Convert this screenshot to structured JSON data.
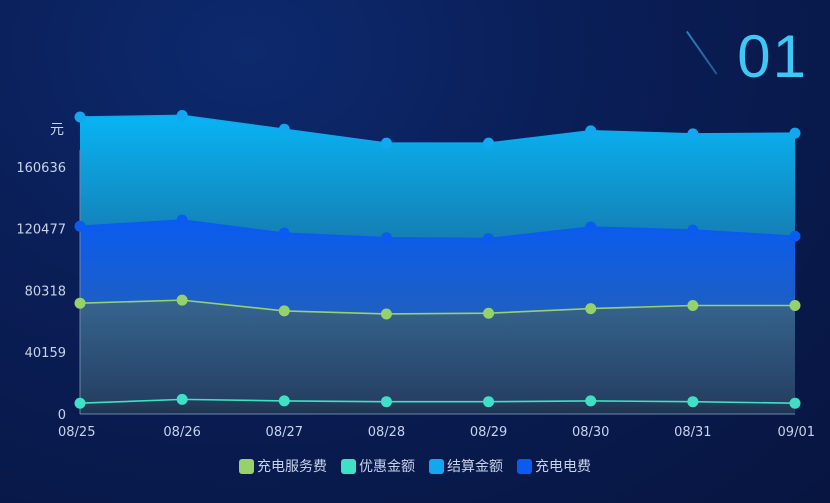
{
  "badge_number": "01",
  "chart_data": {
    "type": "area",
    "stacked": true,
    "ylabel": "元",
    "categories": [
      "08/25",
      "08/26",
      "08/27",
      "08/28",
      "08/29",
      "08/30",
      "08/31",
      "09/01"
    ],
    "yticks": [
      "0",
      "40159",
      "80318",
      "120477",
      "160636"
    ],
    "ylim": [
      0,
      200795
    ],
    "series": [
      {
        "name": "优惠金额",
        "color": "#3fe0c5",
        "values": [
          7000,
          9500,
          8500,
          8000,
          8000,
          8500,
          8000,
          7000
        ]
      },
      {
        "name": "充电服务费",
        "color": "#95d26b",
        "values": [
          65000,
          64500,
          58500,
          57000,
          57500,
          60000,
          62500,
          63500
        ]
      },
      {
        "name": "充电电费",
        "color": "#0a5cf0",
        "values": [
          50000,
          52000,
          50500,
          49500,
          48500,
          53000,
          49000,
          45000
        ]
      },
      {
        "name": "结算金额",
        "color": "#12a8ef",
        "values": [
          71000,
          68000,
          67500,
          61500,
          62000,
          62500,
          62500,
          67000
        ]
      }
    ],
    "legend": [
      "充电服务费",
      "优惠金额",
      "结算金额",
      "充电电费"
    ],
    "legend_position": "bottom"
  }
}
